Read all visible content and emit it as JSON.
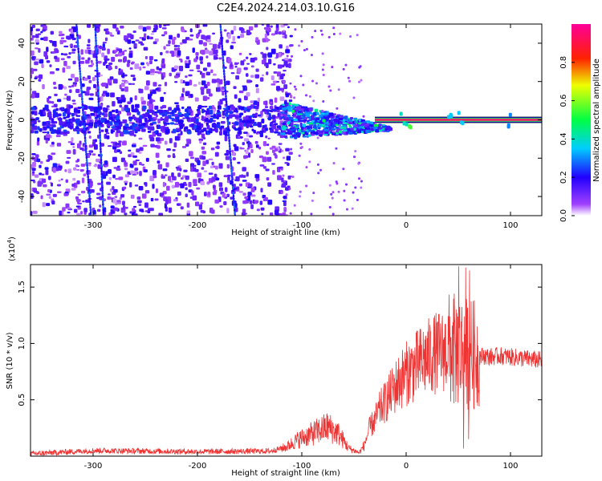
{
  "title": "C2E4.2024.214.03.10.G16",
  "chart_data": [
    {
      "type": "heatmap",
      "xlabel": "Height of straight line (km)",
      "ylabel": "Frequency (Hz)",
      "xlim": [
        -360,
        130
      ],
      "ylim": [
        -50,
        50
      ],
      "x_ticks": [
        -300,
        -200,
        -100,
        0,
        100
      ],
      "y_ticks": [
        -40,
        -20,
        0,
        20,
        40
      ],
      "colorbar": {
        "label": "Normalized spectral amplitude",
        "range": [
          0,
          1
        ],
        "ticks": [
          "0.0",
          "0.2",
          "0.4",
          "0.6",
          "0.8"
        ],
        "colormap": [
          "#ffffff",
          "#7a00ff",
          "#0000ff",
          "#00ffff",
          "#00ff00",
          "#ffff00",
          "#ff0000",
          "#ff00aa"
        ]
      },
      "features": {
        "noise_region_x": [
          -360,
          -120
        ],
        "transition_region_x": [
          -120,
          -30
        ],
        "carrier_line_x": [
          -30,
          130
        ],
        "carrier_frequency": 0,
        "carrier_amplitude": 0.95,
        "slanted_streaks": [
          {
            "x_top": -316,
            "x_bottom": -302
          },
          {
            "x_top": -298,
            "x_bottom": -290
          },
          {
            "x_top": -178,
            "x_bottom": -164
          }
        ]
      }
    },
    {
      "type": "line",
      "xlabel": "Height of straight line (km)",
      "ylabel": "SNR (10 * v/v)",
      "y_multiplier": "(x10",
      "y_multiplier_exp": "4",
      "y_multiplier_close": ")",
      "xlim": [
        -360,
        130
      ],
      "ylim": [
        0,
        17000
      ],
      "x_ticks": [
        -300,
        -200,
        -100,
        0,
        100
      ],
      "y_ticks": [
        "0.5",
        "1.0",
        "1.5"
      ],
      "y_tick_values": [
        5000,
        10000,
        15000
      ],
      "series_color": "#ee3333",
      "series": [
        {
          "x": [
            -360,
            -300,
            -200,
            -130,
            -115,
            -105,
            -95,
            -85,
            -75,
            -65,
            -55,
            -45,
            -40,
            -35,
            -30,
            -25,
            -20,
            -15,
            -10,
            -5,
            0,
            5,
            10,
            15,
            20,
            25,
            30,
            35,
            40,
            45,
            50,
            55,
            60,
            65,
            70,
            75,
            80,
            90,
            100,
            110,
            120,
            130
          ],
          "y": [
            200,
            500,
            400,
            450,
            800,
            1400,
            1800,
            2200,
            2600,
            2000,
            700,
            300,
            1000,
            2500,
            3200,
            4200,
            4800,
            5500,
            6200,
            6800,
            7300,
            7700,
            8000,
            8400,
            8700,
            9000,
            9200,
            9300,
            9400,
            9300,
            9500,
            9200,
            9100,
            9000,
            8900,
            8900,
            8800,
            8900,
            8800,
            8700,
            8600,
            8500
          ]
        }
      ]
    }
  ]
}
